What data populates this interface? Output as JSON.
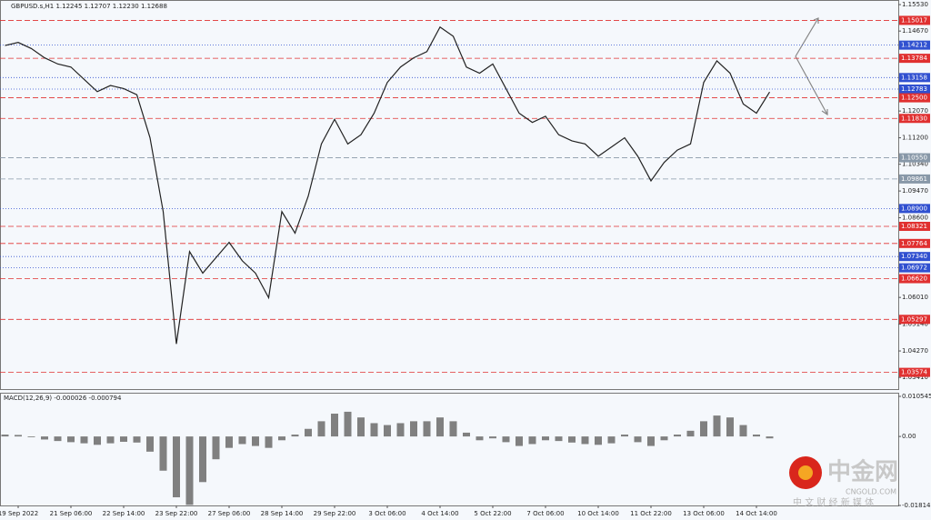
{
  "chart_data": [
    {
      "type": "line",
      "title": "GBPUSD.s,H1  1.12245 1.12707 1.12230 1.12688",
      "color": "#222222",
      "values": [
        1.142,
        1.143,
        1.141,
        1.138,
        1.136,
        1.135,
        1.131,
        1.127,
        1.129,
        1.128,
        1.126,
        1.112,
        1.088,
        1.045,
        1.075,
        1.068,
        1.073,
        1.078,
        1.072,
        1.068,
        1.06,
        1.088,
        1.081,
        1.093,
        1.11,
        1.118,
        1.11,
        1.113,
        1.12,
        1.13,
        1.135,
        1.138,
        1.14,
        1.148,
        1.145,
        1.135,
        1.133,
        1.136,
        1.128,
        1.12,
        1.117,
        1.119,
        1.113,
        1.111,
        1.11,
        1.106,
        1.109,
        1.112,
        1.106,
        1.098,
        1.104,
        1.108,
        1.11,
        1.13,
        1.137,
        1.133,
        1.123,
        1.12,
        1.1269
      ],
      "ylim": [
        1.0303,
        1.1565
      ],
      "yticks": [
        {
          "value": 1.1553,
          "label": "1.15530"
        },
        {
          "value": 1.1467,
          "label": "1.14670"
        },
        {
          "value": 1.1207,
          "label": "1.12070"
        },
        {
          "value": 1.112,
          "label": "1.11200"
        },
        {
          "value": 1.1034,
          "label": "1.10340"
        },
        {
          "value": 1.0947,
          "label": "1.09470"
        },
        {
          "value": 1.086,
          "label": "1.08600"
        },
        {
          "value": 1.0601,
          "label": "1.06010"
        },
        {
          "value": 1.0514,
          "label": "1.05140"
        },
        {
          "value": 1.0427,
          "label": "1.04270"
        },
        {
          "value": 1.0341,
          "label": "1.03410"
        }
      ],
      "levels": [
        {
          "value": 1.15017,
          "color": "#e03030"
        },
        {
          "value": 1.14212,
          "color": "#3050d0"
        },
        {
          "value": 1.13784,
          "color": "#e03030"
        },
        {
          "value": 1.13158,
          "color": "#3050d0"
        },
        {
          "value": 1.12783,
          "color": "#3050d0"
        },
        {
          "value": 1.125,
          "label": "1.12500",
          "color": "#e03030"
        },
        {
          "value": 1.1183,
          "label": "1.11830",
          "color": "#e03030"
        },
        {
          "value": 1.1055,
          "label": "1.10550",
          "color": "#8898a8"
        },
        {
          "value": 1.09861,
          "color": "#8898a8"
        },
        {
          "value": 1.089,
          "label": "1.08900",
          "color": "#3050d0"
        },
        {
          "value": 1.08321,
          "color": "#e03030"
        },
        {
          "value": 1.07764,
          "color": "#e03030"
        },
        {
          "value": 1.0734,
          "label": "1.07340",
          "color": "#3050d0"
        },
        {
          "value": 1.06972,
          "color": "#3050d0"
        },
        {
          "value": 1.0662,
          "label": "1.06620",
          "color": "#e03030"
        },
        {
          "value": 1.05297,
          "color": "#e03030"
        },
        {
          "value": 1.03574,
          "color": "#e03030"
        }
      ]
    },
    {
      "type": "bar",
      "title": "MACD(12,26,9) -0.000026 -0.000794",
      "color": "#808080",
      "categories": [
        null,
        "19 Sep 2022",
        null,
        null,
        null,
        "21 Sep 06:00",
        null,
        null,
        null,
        "22 Sep 14:00",
        null,
        null,
        null,
        "23 Sep 22:00",
        null,
        null,
        null,
        "27 Sep 06:00",
        null,
        null,
        null,
        "28 Sep 14:00",
        null,
        null,
        null,
        "29 Sep 22:00",
        null,
        null,
        null,
        "3 Oct 06:00",
        null,
        null,
        null,
        "4 Oct 14:00",
        null,
        null,
        null,
        "5 Oct 22:00",
        null,
        null,
        null,
        "7 Oct 06:00",
        null,
        null,
        null,
        "10 Oct 14:00",
        null,
        null,
        null,
        "11 Oct 22:00",
        null,
        null,
        null,
        "13 Oct 06:00",
        null,
        null,
        null,
        "14 Oct 14:00",
        null
      ],
      "values": [
        0.0005,
        0.0004,
        -0.0002,
        -0.0008,
        -0.0012,
        -0.0015,
        -0.0018,
        -0.0022,
        -0.0018,
        -0.0014,
        -0.0016,
        -0.004,
        -0.009,
        -0.016,
        -0.018,
        -0.012,
        -0.006,
        -0.003,
        -0.002,
        -0.0025,
        -0.003,
        -0.001,
        0.0005,
        0.002,
        0.004,
        0.006,
        0.0065,
        0.005,
        0.0035,
        0.003,
        0.0035,
        0.004,
        0.004,
        0.005,
        0.004,
        0.001,
        -0.001,
        -0.0005,
        -0.0015,
        -0.0025,
        -0.002,
        -0.001,
        -0.0012,
        -0.0016,
        -0.002,
        -0.0022,
        -0.0018,
        0.0005,
        -0.0015,
        -0.0025,
        -0.001,
        0.0005,
        0.0015,
        0.004,
        0.0055,
        0.005,
        0.003,
        0.0005,
        -0.0005
      ],
      "ylim": [
        -0.018145,
        0.010545
      ],
      "yticks": [
        0.010545,
        {
          "value": 0,
          "label": "0.00"
        },
        -0.018145
      ]
    }
  ],
  "watermark": {
    "title": "中金网",
    "site": "CNGOLD.COM",
    "tagline": "中 文 财 经 新 媒 体"
  }
}
